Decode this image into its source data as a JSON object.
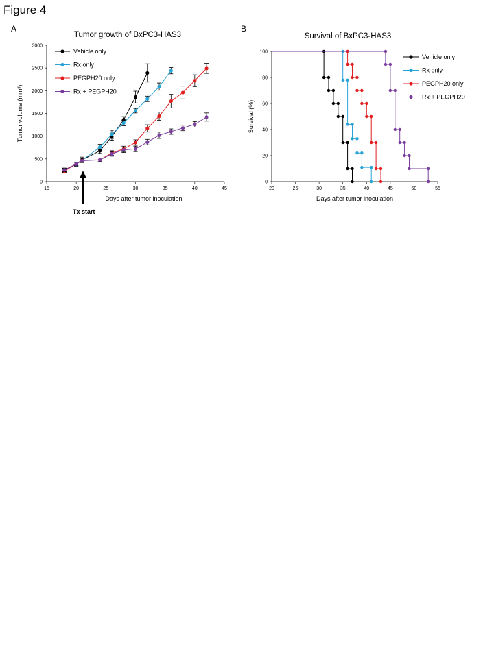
{
  "figure": {
    "title": "Figure 4"
  },
  "annotation": {
    "label": "Tx start",
    "day": 21
  },
  "chart_data": [
    {
      "panel": "A",
      "type": "line",
      "title": "Tumor growth of BxPC3-HAS3",
      "xlabel": "Days after tumor inoculation",
      "ylabel": "Tumor volume (mm³)",
      "xlim": [
        15,
        45
      ],
      "ylim": [
        0,
        3000
      ],
      "xticks": [
        15,
        20,
        25,
        30,
        35,
        40,
        45
      ],
      "yticks": [
        0,
        500,
        1000,
        1500,
        2000,
        2500,
        3000
      ],
      "legend": "top-left",
      "grid": false,
      "series": [
        {
          "name": "Vehicle only",
          "color": "#000000",
          "x": [
            18,
            20,
            21,
            24,
            26,
            28,
            30,
            32
          ],
          "y": [
            240,
            390,
            480,
            680,
            990,
            1360,
            1860,
            2390
          ],
          "err": [
            40,
            40,
            60,
            60,
            80,
            70,
            130,
            200
          ]
        },
        {
          "name": "Rx only",
          "color": "#29a3d6",
          "x": [
            18,
            20,
            21,
            24,
            26,
            28,
            30,
            32,
            34,
            36
          ],
          "y": [
            250,
            380,
            470,
            760,
            1040,
            1290,
            1560,
            1820,
            2090,
            2440
          ],
          "err": [
            40,
            40,
            50,
            60,
            90,
            60,
            50,
            60,
            80,
            70
          ]
        },
        {
          "name": "PEGPH20 only",
          "color": "#e02020",
          "x": [
            18,
            20,
            21,
            24,
            26,
            28,
            30,
            32,
            34,
            36,
            38,
            40,
            42
          ],
          "y": [
            230,
            390,
            470,
            480,
            630,
            720,
            860,
            1170,
            1440,
            1770,
            1960,
            2220,
            2490
          ],
          "err": [
            40,
            40,
            50,
            40,
            50,
            60,
            60,
            80,
            90,
            150,
            140,
            130,
            110
          ]
        },
        {
          "name": "Rx + PEGPH20",
          "color": "#7a3f9e",
          "x": [
            18,
            20,
            21,
            24,
            26,
            28,
            30,
            32,
            34,
            36,
            38,
            40,
            42
          ],
          "y": [
            260,
            390,
            460,
            480,
            610,
            700,
            720,
            870,
            1020,
            1100,
            1180,
            1260,
            1420
          ],
          "err": [
            40,
            40,
            40,
            40,
            50,
            60,
            60,
            60,
            70,
            60,
            60,
            60,
            90
          ]
        }
      ]
    },
    {
      "panel": "B",
      "type": "line",
      "title": "Survival of BxPC3-HAS3",
      "xlabel": "Days after tumor inoculation",
      "ylabel": "Survival (%)",
      "xlim": [
        20,
        55
      ],
      "ylim": [
        0,
        100
      ],
      "xticks": [
        20,
        25,
        30,
        35,
        40,
        45,
        50,
        55
      ],
      "yticks": [
        0,
        20,
        40,
        60,
        80,
        100
      ],
      "legend": "top-right",
      "grid": false,
      "series": [
        {
          "name": "Vehicle only",
          "color": "#000000",
          "x": [
            20,
            31,
            32,
            33,
            34,
            35,
            36,
            37
          ],
          "y": [
            100,
            80,
            70,
            60,
            50,
            30,
            10,
            0
          ]
        },
        {
          "name": "Rx only",
          "color": "#29a3d6",
          "x": [
            20,
            35,
            36,
            37,
            38,
            39,
            41
          ],
          "y": [
            100,
            78,
            44,
            33,
            22,
            11,
            0
          ]
        },
        {
          "name": "PEGPH20 only",
          "color": "#e02020",
          "x": [
            20,
            36,
            37,
            38,
            39,
            40,
            41,
            42,
            43
          ],
          "y": [
            100,
            90,
            80,
            70,
            60,
            50,
            30,
            10,
            0
          ]
        },
        {
          "name": "Rx + PEGPH20",
          "color": "#7a3f9e",
          "x": [
            20,
            44,
            45,
            46,
            47,
            48,
            49,
            53
          ],
          "y": [
            100,
            90,
            70,
            40,
            30,
            20,
            10,
            0
          ]
        }
      ]
    }
  ]
}
